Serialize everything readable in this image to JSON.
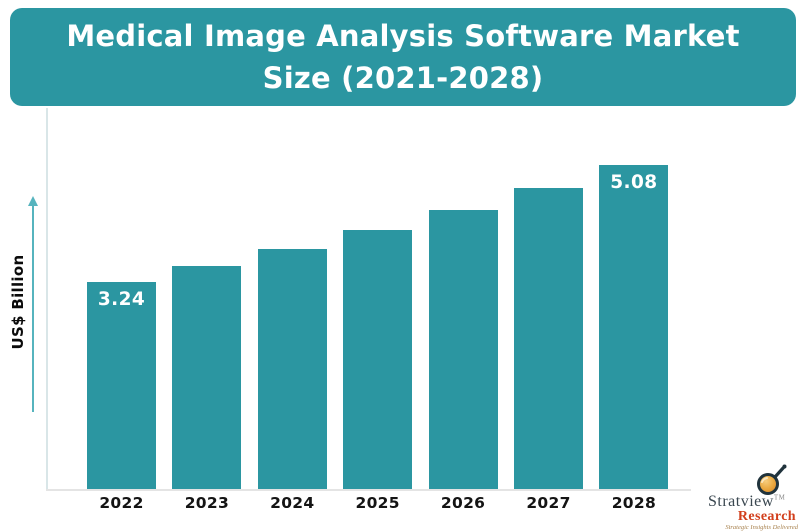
{
  "banner": {
    "title_line1": "Medical Image Analysis Software Market",
    "title_line2": "Size (2021-2028)",
    "bg_color": "#2b96a1",
    "text_color": "#ffffff"
  },
  "chart_data": {
    "type": "bar",
    "title": "Medical Image Analysis Software Market Size (2021-2028)",
    "categories": [
      "2022",
      "2023",
      "2024",
      "2025",
      "2026",
      "2027",
      "2028"
    ],
    "values": [
      3.24,
      3.49,
      3.77,
      4.06,
      4.38,
      4.72,
      5.08
    ],
    "data_labels": [
      "3.24",
      "",
      "",
      "",
      "",
      "",
      "5.08"
    ],
    "xlabel": "",
    "ylabel": "US$ Billion",
    "ylim": [
      0,
      5.6
    ],
    "grid": false,
    "legend": false,
    "bar_color": "#2b96a1",
    "data_label_color": "#ffffff",
    "axis_line_color": "#e4e4e4",
    "y_axis_line_color": "#d9e6e8",
    "arrow_color": "#56b4be",
    "tick_label_color": "#141414"
  },
  "logo": {
    "brand": "Stratview",
    "trademark": "TM",
    "sub_brand": "Research",
    "tagline": "Strategic Insights Delivered",
    "brand_color": "#3a4750",
    "sub_brand_color": "#d23f1c",
    "tagline_color": "#a8824f",
    "icon": "magnifier-icon"
  }
}
